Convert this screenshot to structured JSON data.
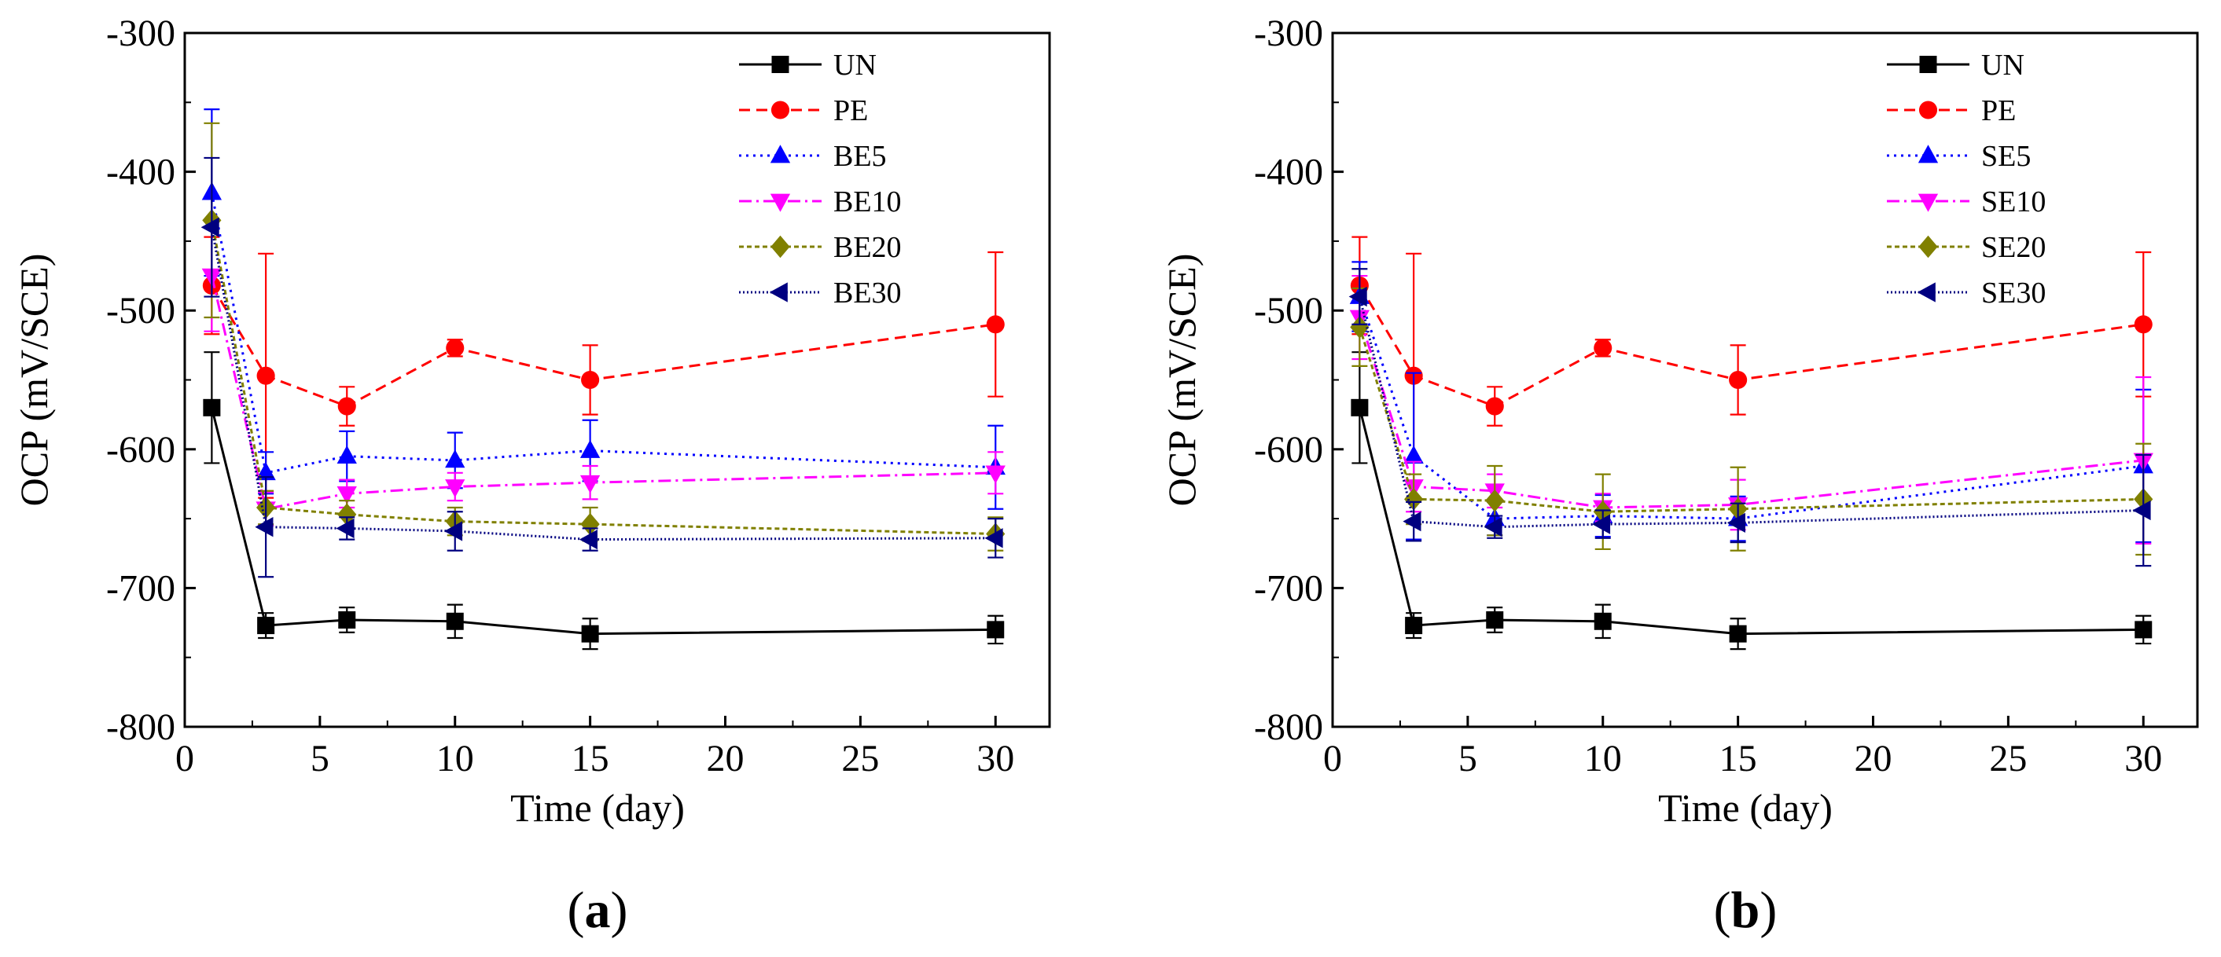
{
  "chart_data": [
    {
      "type": "line",
      "panel_label": "a",
      "xlabel": "Time (day)",
      "ylabel": "OCP (mV/SCE)",
      "xlim": [
        0,
        32
      ],
      "ylim": [
        -800,
        -300
      ],
      "xticks": [
        0,
        5,
        10,
        15,
        20,
        25,
        30
      ],
      "yticks": [
        -300,
        -400,
        -500,
        -600,
        -700,
        -800
      ],
      "legend_position": "top-right",
      "x": [
        1,
        3,
        6,
        10,
        15,
        30
      ],
      "series": [
        {
          "name": "UN",
          "color": "#000000",
          "marker": "square",
          "dash": "",
          "values": [
            -570,
            -727,
            -723,
            -724,
            -733,
            -730
          ],
          "errors": [
            40,
            9,
            9,
            12,
            11,
            10
          ]
        },
        {
          "name": "PE",
          "color": "#ff0000",
          "marker": "circle",
          "dash": "14,8",
          "values": [
            -482,
            -547,
            -569,
            -527,
            -550,
            -510
          ],
          "errors": [
            35,
            88,
            14,
            6,
            25,
            52
          ]
        },
        {
          "name": "BE5",
          "color": "#0000ff",
          "marker": "triangle-up",
          "dash": "3,6",
          "values": [
            -415,
            -617,
            -605,
            -608,
            -601,
            -613
          ],
          "errors": [
            60,
            15,
            18,
            20,
            22,
            30
          ]
        },
        {
          "name": "BE10",
          "color": "#ff00ff",
          "marker": "triangle-down",
          "dash": "16,6,3,6",
          "values": [
            -475,
            -643,
            -632,
            -627,
            -624,
            -617
          ],
          "errors": [
            40,
            12,
            10,
            10,
            12,
            15
          ]
        },
        {
          "name": "BE20",
          "color": "#808000",
          "marker": "diamond",
          "dash": "6,4",
          "values": [
            -435,
            -642,
            -647,
            -652,
            -654,
            -661
          ],
          "errors": [
            70,
            12,
            10,
            10,
            12,
            12
          ]
        },
        {
          "name": "BE30",
          "color": "#000080",
          "marker": "triangle-left",
          "dash": "2,3",
          "values": [
            -440,
            -656,
            -657,
            -659,
            -665,
            -664
          ],
          "errors": [
            50,
            36,
            8,
            14,
            8,
            14
          ]
        }
      ]
    },
    {
      "type": "line",
      "panel_label": "b",
      "xlabel": "Time (day)",
      "ylabel": "OCP (mV/SCE)",
      "xlim": [
        0,
        32
      ],
      "ylim": [
        -800,
        -300
      ],
      "xticks": [
        0,
        5,
        10,
        15,
        20,
        25,
        30
      ],
      "yticks": [
        -300,
        -400,
        -500,
        -600,
        -700,
        -800
      ],
      "legend_position": "top-right",
      "x": [
        1,
        3,
        6,
        10,
        15,
        30
      ],
      "series": [
        {
          "name": "UN",
          "color": "#000000",
          "marker": "square",
          "dash": "",
          "values": [
            -570,
            -727,
            -723,
            -724,
            -733,
            -730
          ],
          "errors": [
            40,
            9,
            9,
            12,
            11,
            10
          ]
        },
        {
          "name": "PE",
          "color": "#ff0000",
          "marker": "circle",
          "dash": "14,8",
          "values": [
            -482,
            -547,
            -569,
            -527,
            -550,
            -510
          ],
          "errors": [
            35,
            88,
            14,
            6,
            25,
            52
          ]
        },
        {
          "name": "SE5",
          "color": "#0000ff",
          "marker": "triangle-up",
          "dash": "3,6",
          "values": [
            -490,
            -605,
            -650,
            -648,
            -650,
            -612
          ],
          "errors": [
            25,
            60,
            12,
            15,
            16,
            55
          ]
        },
        {
          "name": "SE10",
          "color": "#ff00ff",
          "marker": "triangle-down",
          "dash": "16,6,3,6",
          "values": [
            -505,
            -627,
            -630,
            -642,
            -640,
            -608
          ],
          "errors": [
            30,
            18,
            12,
            10,
            18,
            60
          ]
        },
        {
          "name": "SE20",
          "color": "#808000",
          "marker": "diamond",
          "dash": "6,4",
          "values": [
            -512,
            -636,
            -637,
            -645,
            -643,
            -636
          ],
          "errors": [
            28,
            18,
            25,
            27,
            30,
            40
          ]
        },
        {
          "name": "SE30",
          "color": "#000080",
          "marker": "triangle-left",
          "dash": "2,3",
          "values": [
            -490,
            -652,
            -656,
            -654,
            -653,
            -644
          ],
          "errors": [
            20,
            14,
            8,
            10,
            14,
            40
          ]
        }
      ]
    }
  ]
}
